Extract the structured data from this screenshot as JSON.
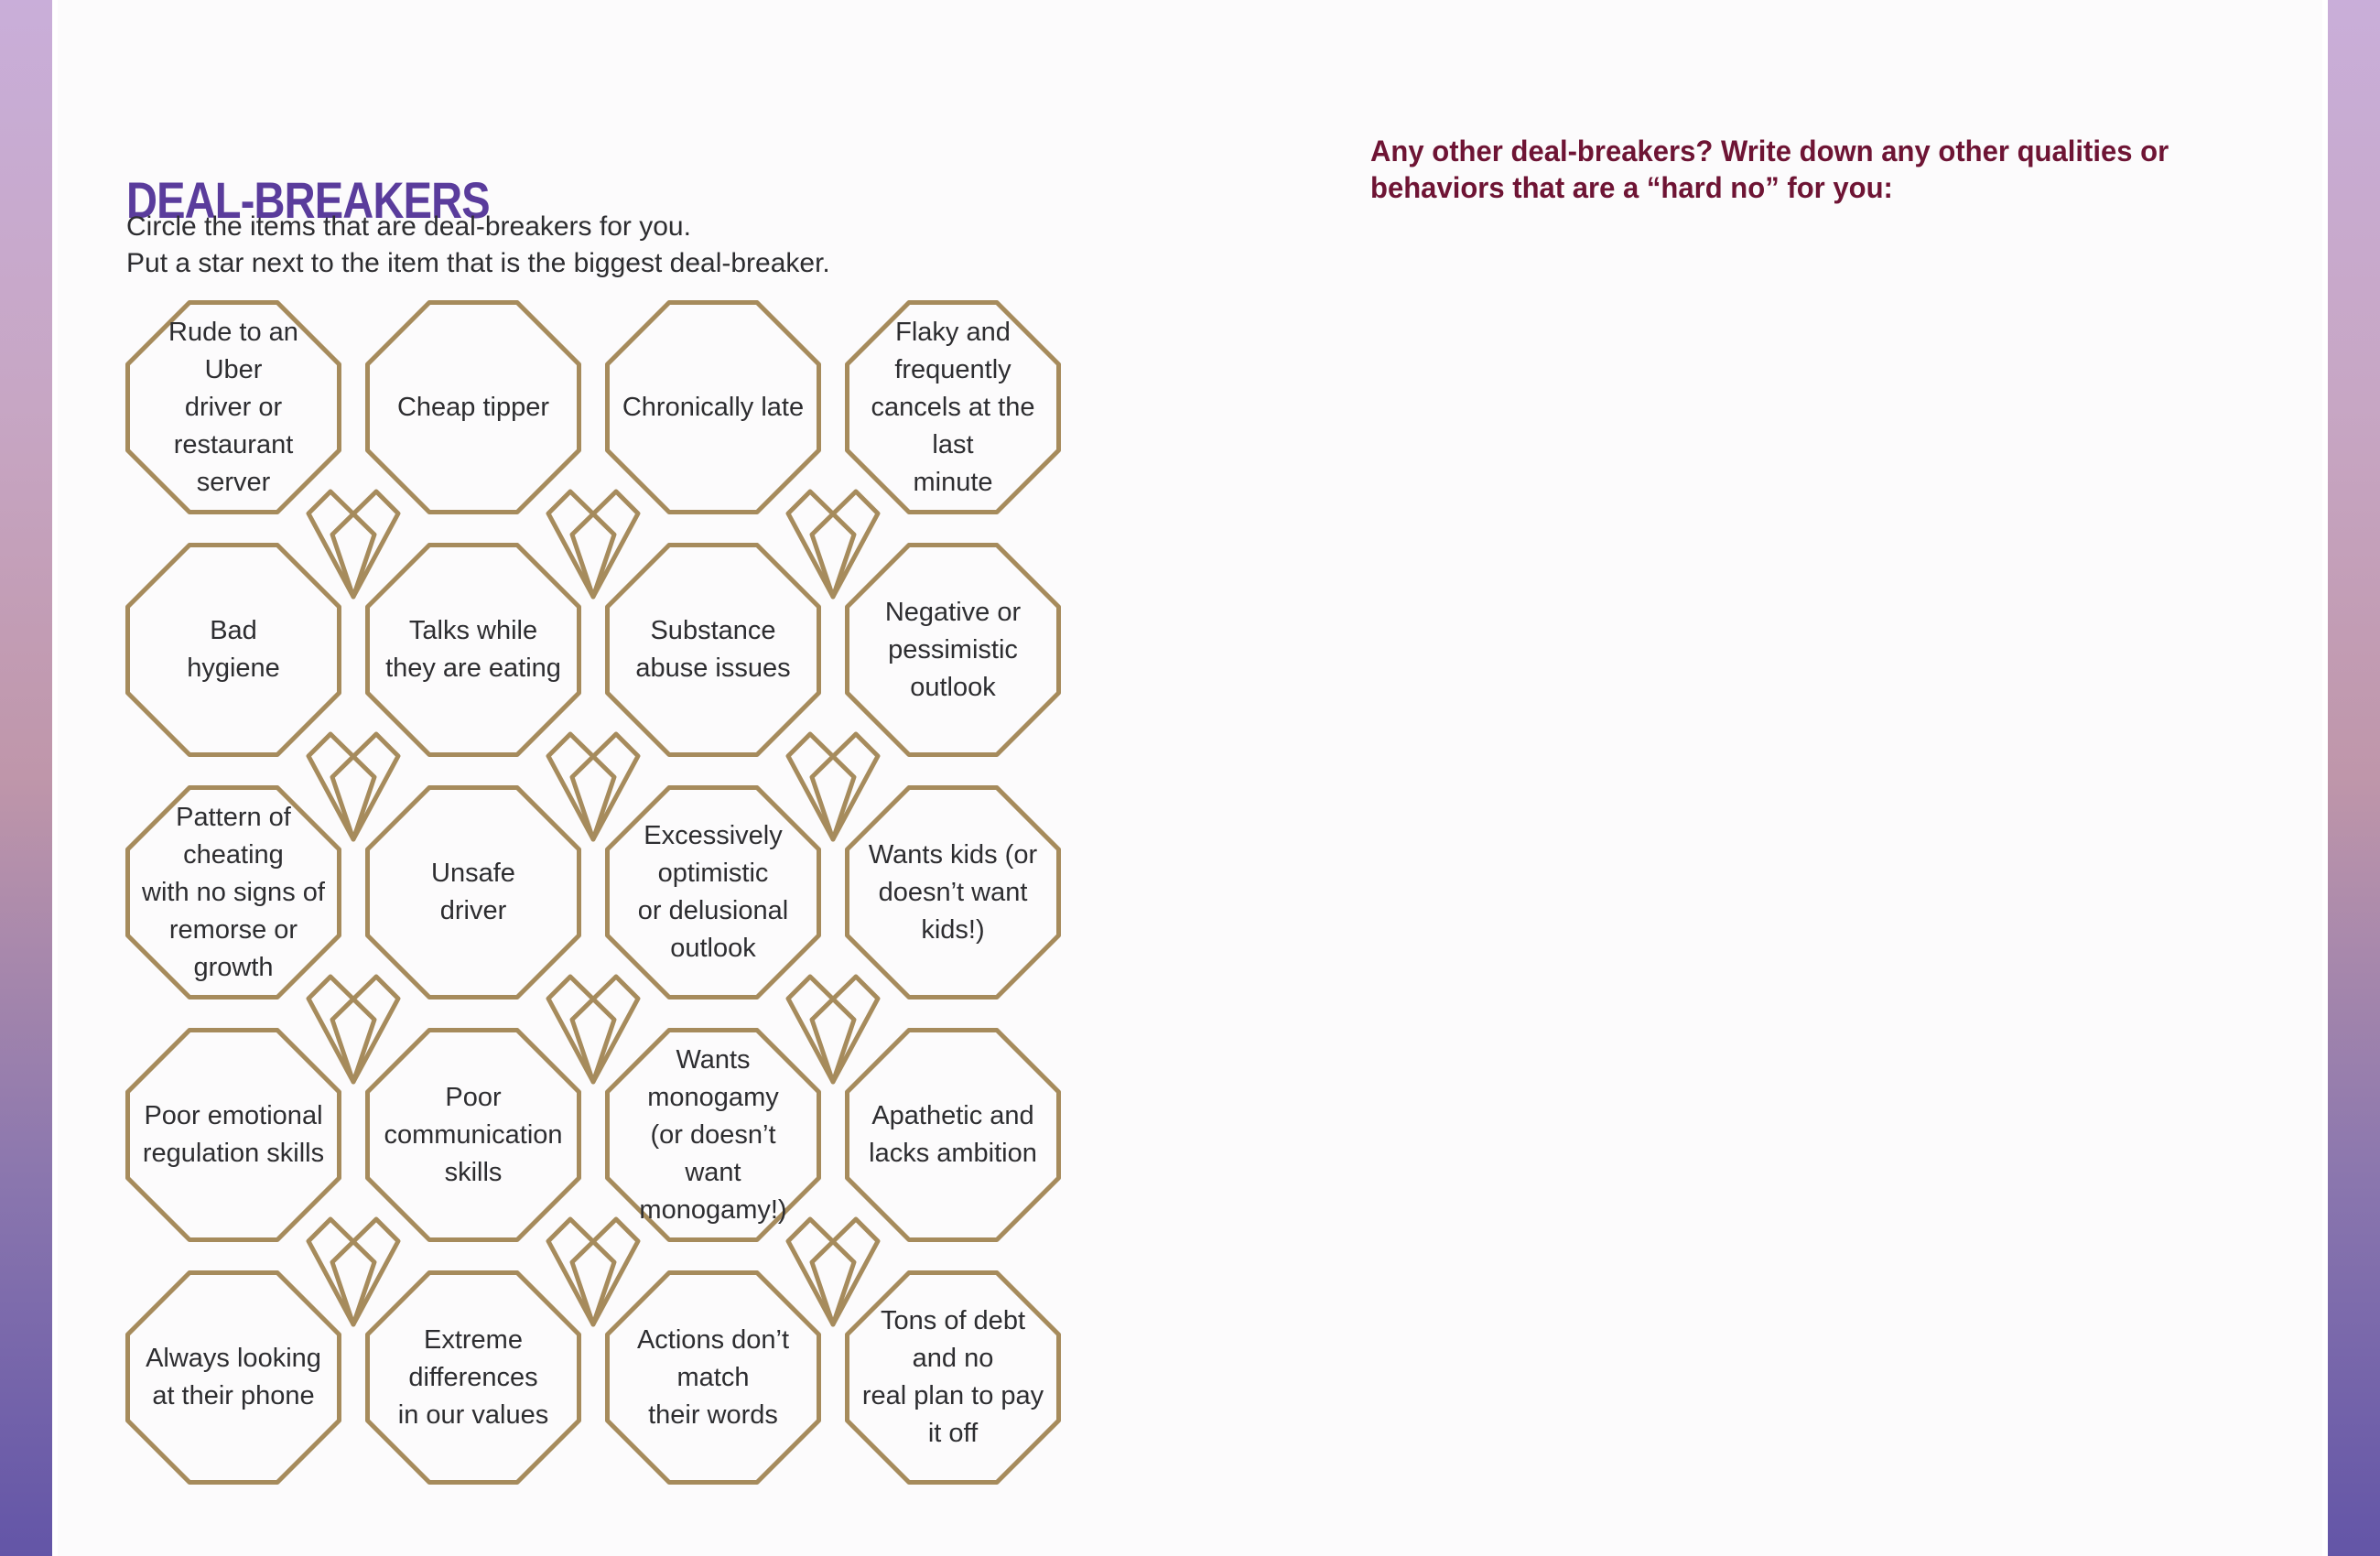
{
  "page": {
    "title": "DEAL-BREAKERS",
    "instructions": [
      "Circle the items that are deal-breakers for you.",
      "Put a star next to the item that is the biggest deal-breaker."
    ],
    "prompt_heading": "Any other deal-breakers? Write down any other qualities or behaviors that are a “hard no” for you:"
  },
  "grid": {
    "rows": 5,
    "cols": 4,
    "items": [
      "Rude to an Uber\ndriver or restaurant\nserver",
      "Cheap tipper",
      "Chronically late",
      "Flaky and frequently\ncancels at the last\nminute",
      "Bad\nhygiene",
      "Talks while\nthey are eating",
      "Substance\nabuse issues",
      "Negative or\npessimistic outlook",
      "Pattern of cheating\nwith no signs of\nremorse or growth",
      "Unsafe\ndriver",
      "Excessively optimistic\nor delusional outlook",
      "Wants kids (or\ndoesn’t want kids!)",
      "Poor emotional\nregulation skills",
      "Poor communication\nskills",
      "Wants monogamy\n(or doesn’t want\nmonogamy!)",
      "Apathetic and\nlacks ambition",
      "Always looking\nat their phone",
      "Extreme differences\nin our values",
      "Actions don’t match\ntheir words",
      "Tons of debt and no\nreal plan to pay it off"
    ]
  },
  "icons": {
    "divider": "heart-icon"
  },
  "colors": {
    "title": "#5A3C9C",
    "prompt": "#6E1434",
    "outline": "#A68B5C",
    "body_text": "#2D2D30",
    "page_bg": "#FCFBFC",
    "gradient_top": "#C9AED9",
    "gradient_upper": "#C7A6C4",
    "gradient_mid": "#BF96AA",
    "gradient_lower": "#8A76AE",
    "gradient_bottom": "#6355A7"
  }
}
